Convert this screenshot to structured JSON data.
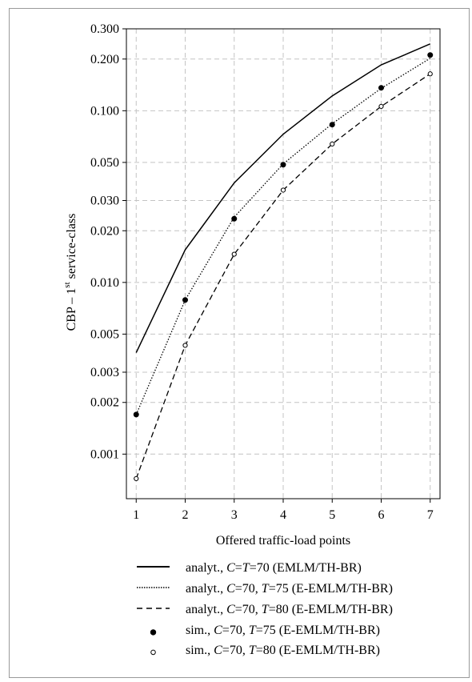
{
  "chart_data": {
    "type": "line",
    "ylabel_main": "CBP – 1",
    "ylabel_sup": "st",
    "ylabel_rest": " service-class",
    "xlabel": "Offered traffic-load points",
    "x": [
      1,
      2,
      3,
      4,
      5,
      6,
      7
    ],
    "x_tick_labels": [
      "1",
      "2",
      "3",
      "4",
      "5",
      "6",
      "7"
    ],
    "xlim": [
      0.8,
      7.2
    ],
    "y_scale": "log",
    "ylim": [
      0.00055,
      0.3
    ],
    "y_ticks": [
      0.001,
      0.002,
      0.003,
      0.005,
      0.01,
      0.02,
      0.03,
      0.05,
      0.1,
      0.2,
      0.3
    ],
    "y_tick_labels": [
      "0.001",
      "0.002",
      "0.003",
      "0.005",
      "0.010",
      "0.020",
      "0.030",
      "0.050",
      "0.100",
      "0.200",
      "0.300"
    ],
    "grid": true,
    "series": [
      {
        "style": "solid",
        "values": [
          0.0039,
          0.0155,
          0.038,
          0.073,
          0.122,
          0.185,
          0.245
        ],
        "legend": {
          "pre": "analyt., ",
          "v1": "C",
          "m1": "=",
          "v2": "T",
          "m2": "=70 (EMLM/TH-BR)"
        }
      },
      {
        "style": "dotted",
        "values": [
          0.0017,
          0.0079,
          0.024,
          0.049,
          0.084,
          0.135,
          0.202
        ],
        "legend": {
          "pre": "analyt., ",
          "v1": "C",
          "m1": "=70, ",
          "v2": "T",
          "m2": "=75 (E-EMLM/TH-BR)"
        }
      },
      {
        "style": "dashed",
        "values": [
          0.00072,
          0.0043,
          0.0146,
          0.0345,
          0.064,
          0.106,
          0.164
        ],
        "legend": {
          "pre": "analyt., ",
          "v1": "C",
          "m1": "=70, ",
          "v2": "T",
          "m2": "=80 (E-EMLM/TH-BR)"
        }
      },
      {
        "style": "marker-filled",
        "values": [
          0.0017,
          0.0079,
          0.0235,
          0.0485,
          0.083,
          0.136,
          0.211
        ],
        "legend": {
          "pre": "sim., ",
          "v1": "C",
          "m1": "=70, ",
          "v2": "T",
          "m2": "=75 (E-EMLM/TH-BR)"
        }
      },
      {
        "style": "marker-open",
        "values": [
          0.00072,
          0.0043,
          0.0146,
          0.0345,
          0.064,
          0.106,
          0.164
        ],
        "legend": {
          "pre": "sim., ",
          "v1": "C",
          "m1": "=70, ",
          "v2": "T",
          "m2": "=80 (E-EMLM/TH-BR)"
        }
      }
    ]
  }
}
